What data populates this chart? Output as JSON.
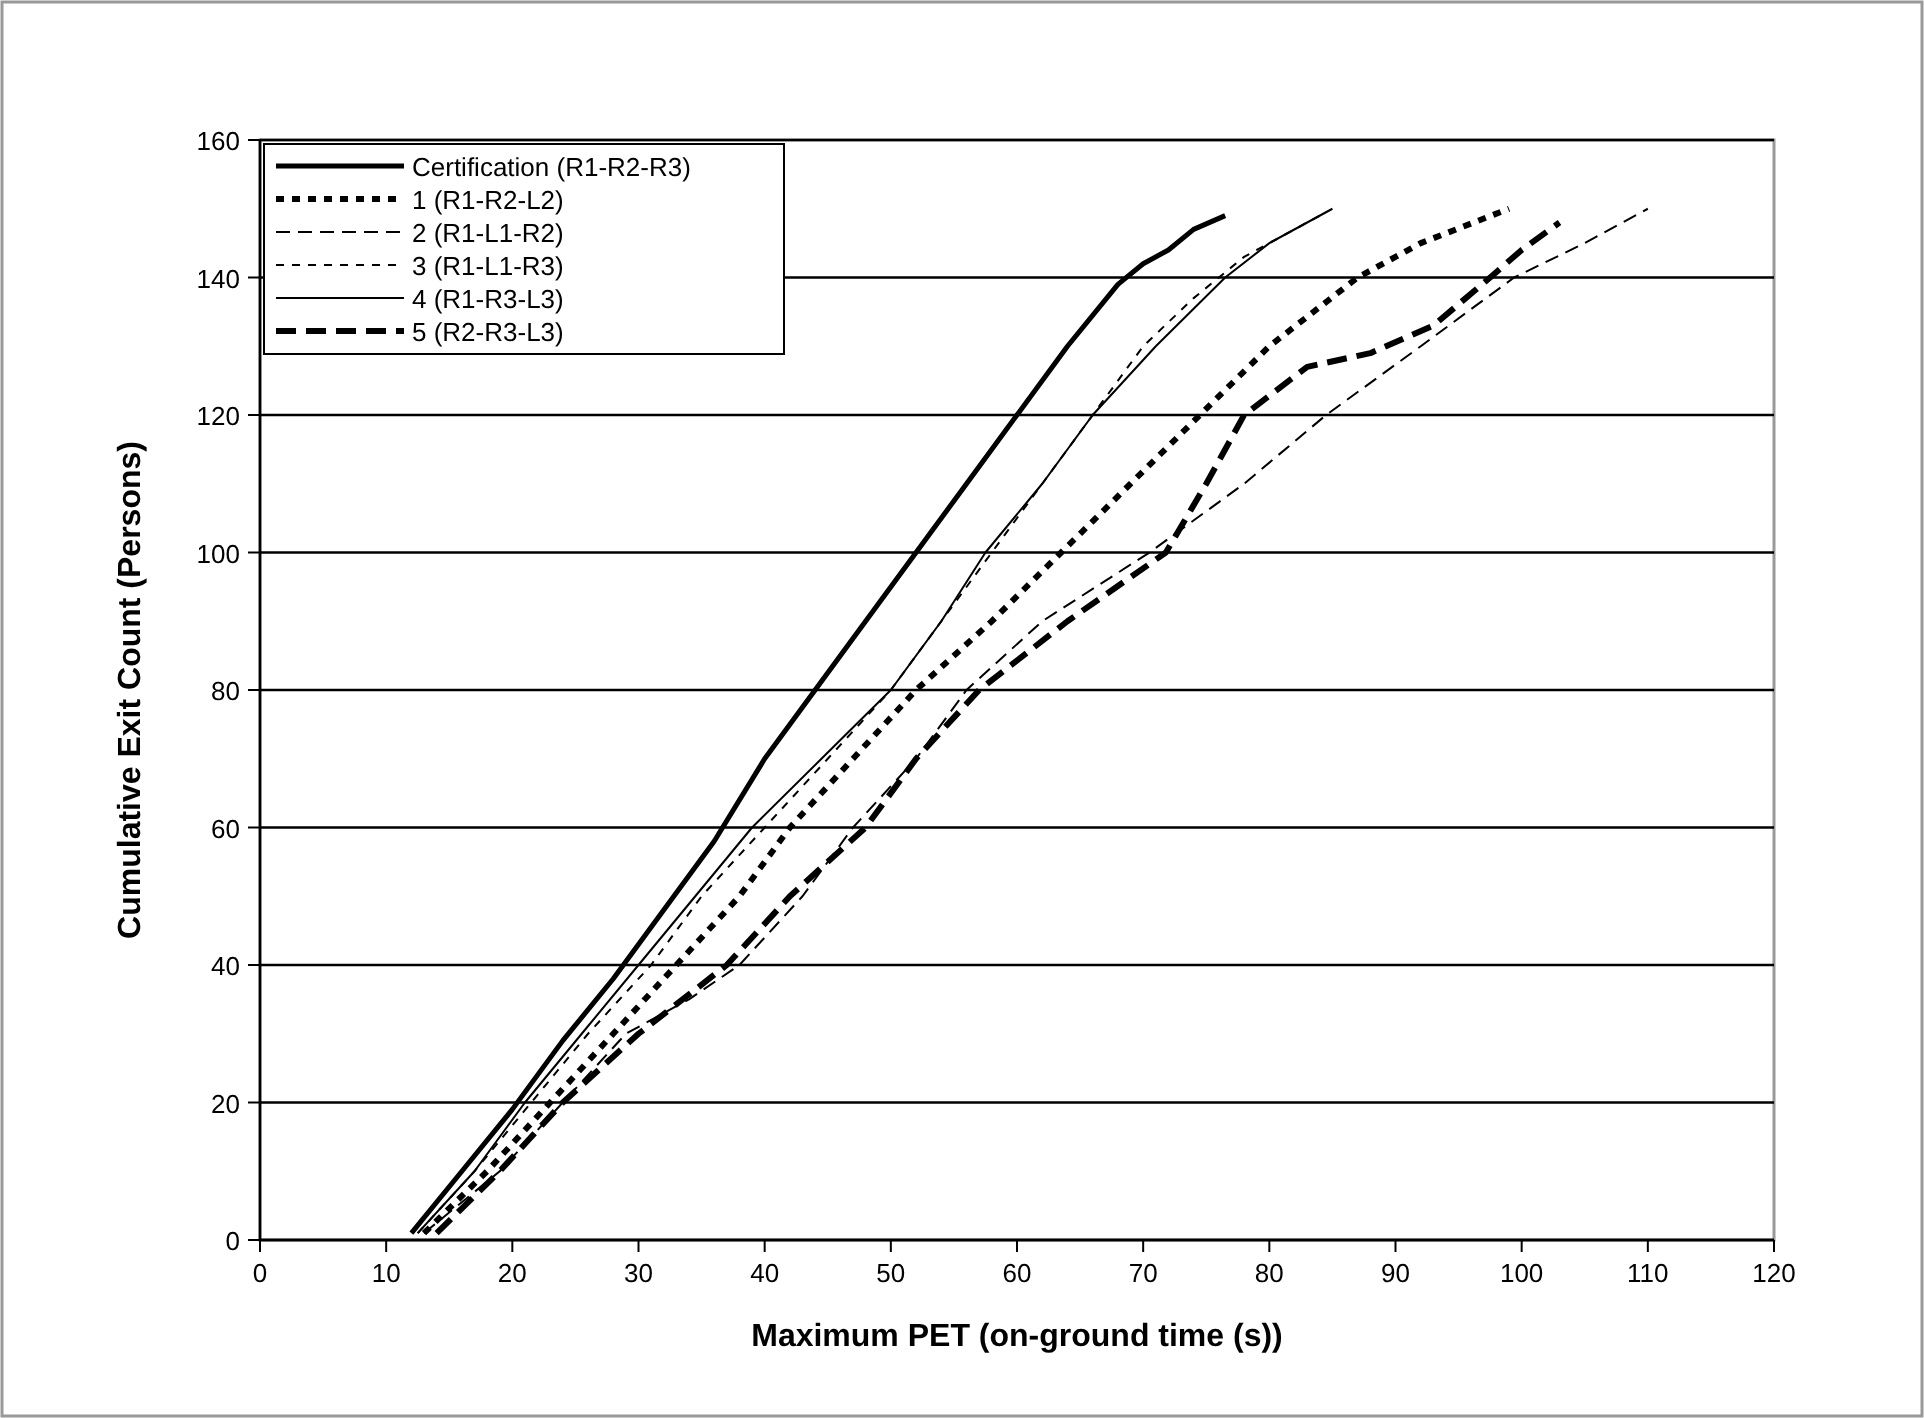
{
  "chart_data": {
    "type": "line",
    "xlabel": "Maximum PET (on-ground time (s))",
    "ylabel": "Cumulative Exit Count (Persons)",
    "xlim": [
      0,
      120
    ],
    "xticks": [
      0,
      10,
      20,
      30,
      40,
      50,
      60,
      70,
      80,
      90,
      100,
      110,
      120
    ],
    "ylim": [
      0,
      160
    ],
    "yticks": [
      0,
      20,
      40,
      60,
      80,
      100,
      120,
      140,
      160
    ],
    "grid": "y",
    "legend": "top left",
    "series": [
      {
        "name": "Certification (R1-R2-R3)",
        "color": "#000000",
        "line_style": "solid",
        "x": [
          12,
          16,
          20,
          24,
          28,
          32,
          36,
          40,
          44,
          48,
          52,
          56,
          60,
          64,
          68,
          70,
          72,
          74,
          76.5
        ],
        "values": [
          1,
          10,
          19,
          29,
          38,
          48,
          58,
          70,
          80,
          90,
          100,
          110,
          120,
          130,
          139,
          142,
          144,
          147,
          149
        ]
      },
      {
        "name": "1 (R1-R2-L2)",
        "color": "#000000",
        "line_style": "dotted",
        "x": [
          13,
          18,
          23,
          28,
          33,
          38,
          42,
          47,
          52,
          58,
          63.5,
          69,
          74.5,
          80,
          87,
          92,
          99
        ],
        "values": [
          1,
          10,
          20,
          30,
          40,
          50,
          60,
          70,
          80,
          90,
          100,
          110,
          120,
          130,
          140,
          145,
          150
        ]
      },
      {
        "name": "2 (R1-L1-R2)",
        "color": "#000000",
        "line_style": "dashed",
        "x": [
          13,
          19,
          24,
          29,
          34,
          38,
          43,
          47,
          52,
          56,
          62,
          70.5,
          78,
          84.5,
          92,
          99.4,
          105,
          110
        ],
        "values": [
          1,
          10,
          20,
          30,
          35,
          40,
          50,
          60,
          70,
          80,
          90,
          100,
          110,
          120,
          130,
          140,
          145,
          150
        ]
      },
      {
        "name": "3 (R1-L1-R3)",
        "color": "#000000",
        "line_style": "dotted",
        "x": [
          12.5,
          17,
          21.5,
          26,
          31,
          35,
          40,
          45,
          50,
          54,
          58,
          62,
          66,
          70,
          74,
          78,
          81,
          84
        ],
        "values": [
          1,
          10,
          20,
          30,
          40,
          50,
          60,
          70,
          80,
          90,
          100,
          110,
          120,
          130,
          137,
          143,
          146,
          149
        ]
      },
      {
        "name": "4 (R1-R3-L3)",
        "color": "#000000",
        "line_style": "solid",
        "x": [
          12.5,
          17,
          21,
          25.5,
          30,
          34.5,
          39,
          44.5,
          50,
          54,
          57.5,
          62,
          66,
          71,
          76.5,
          80,
          85
        ],
        "values": [
          1,
          10,
          20,
          30,
          40,
          50,
          60,
          70,
          80,
          90,
          100,
          110,
          120,
          130,
          140,
          145,
          150
        ]
      },
      {
        "name": "5 (R2-R3-L3)",
        "color": "#000000",
        "line_style": "dashed",
        "x": [
          14,
          19,
          24,
          30,
          37,
          42,
          48,
          52,
          57,
          64,
          71.8,
          75,
          78,
          83,
          88,
          93,
          97.5,
          100,
          103
        ],
        "values": [
          1,
          10,
          20,
          30,
          40,
          50,
          60,
          70,
          80,
          90,
          100,
          110,
          120,
          127,
          129,
          133,
          140,
          144,
          148
        ]
      }
    ]
  }
}
